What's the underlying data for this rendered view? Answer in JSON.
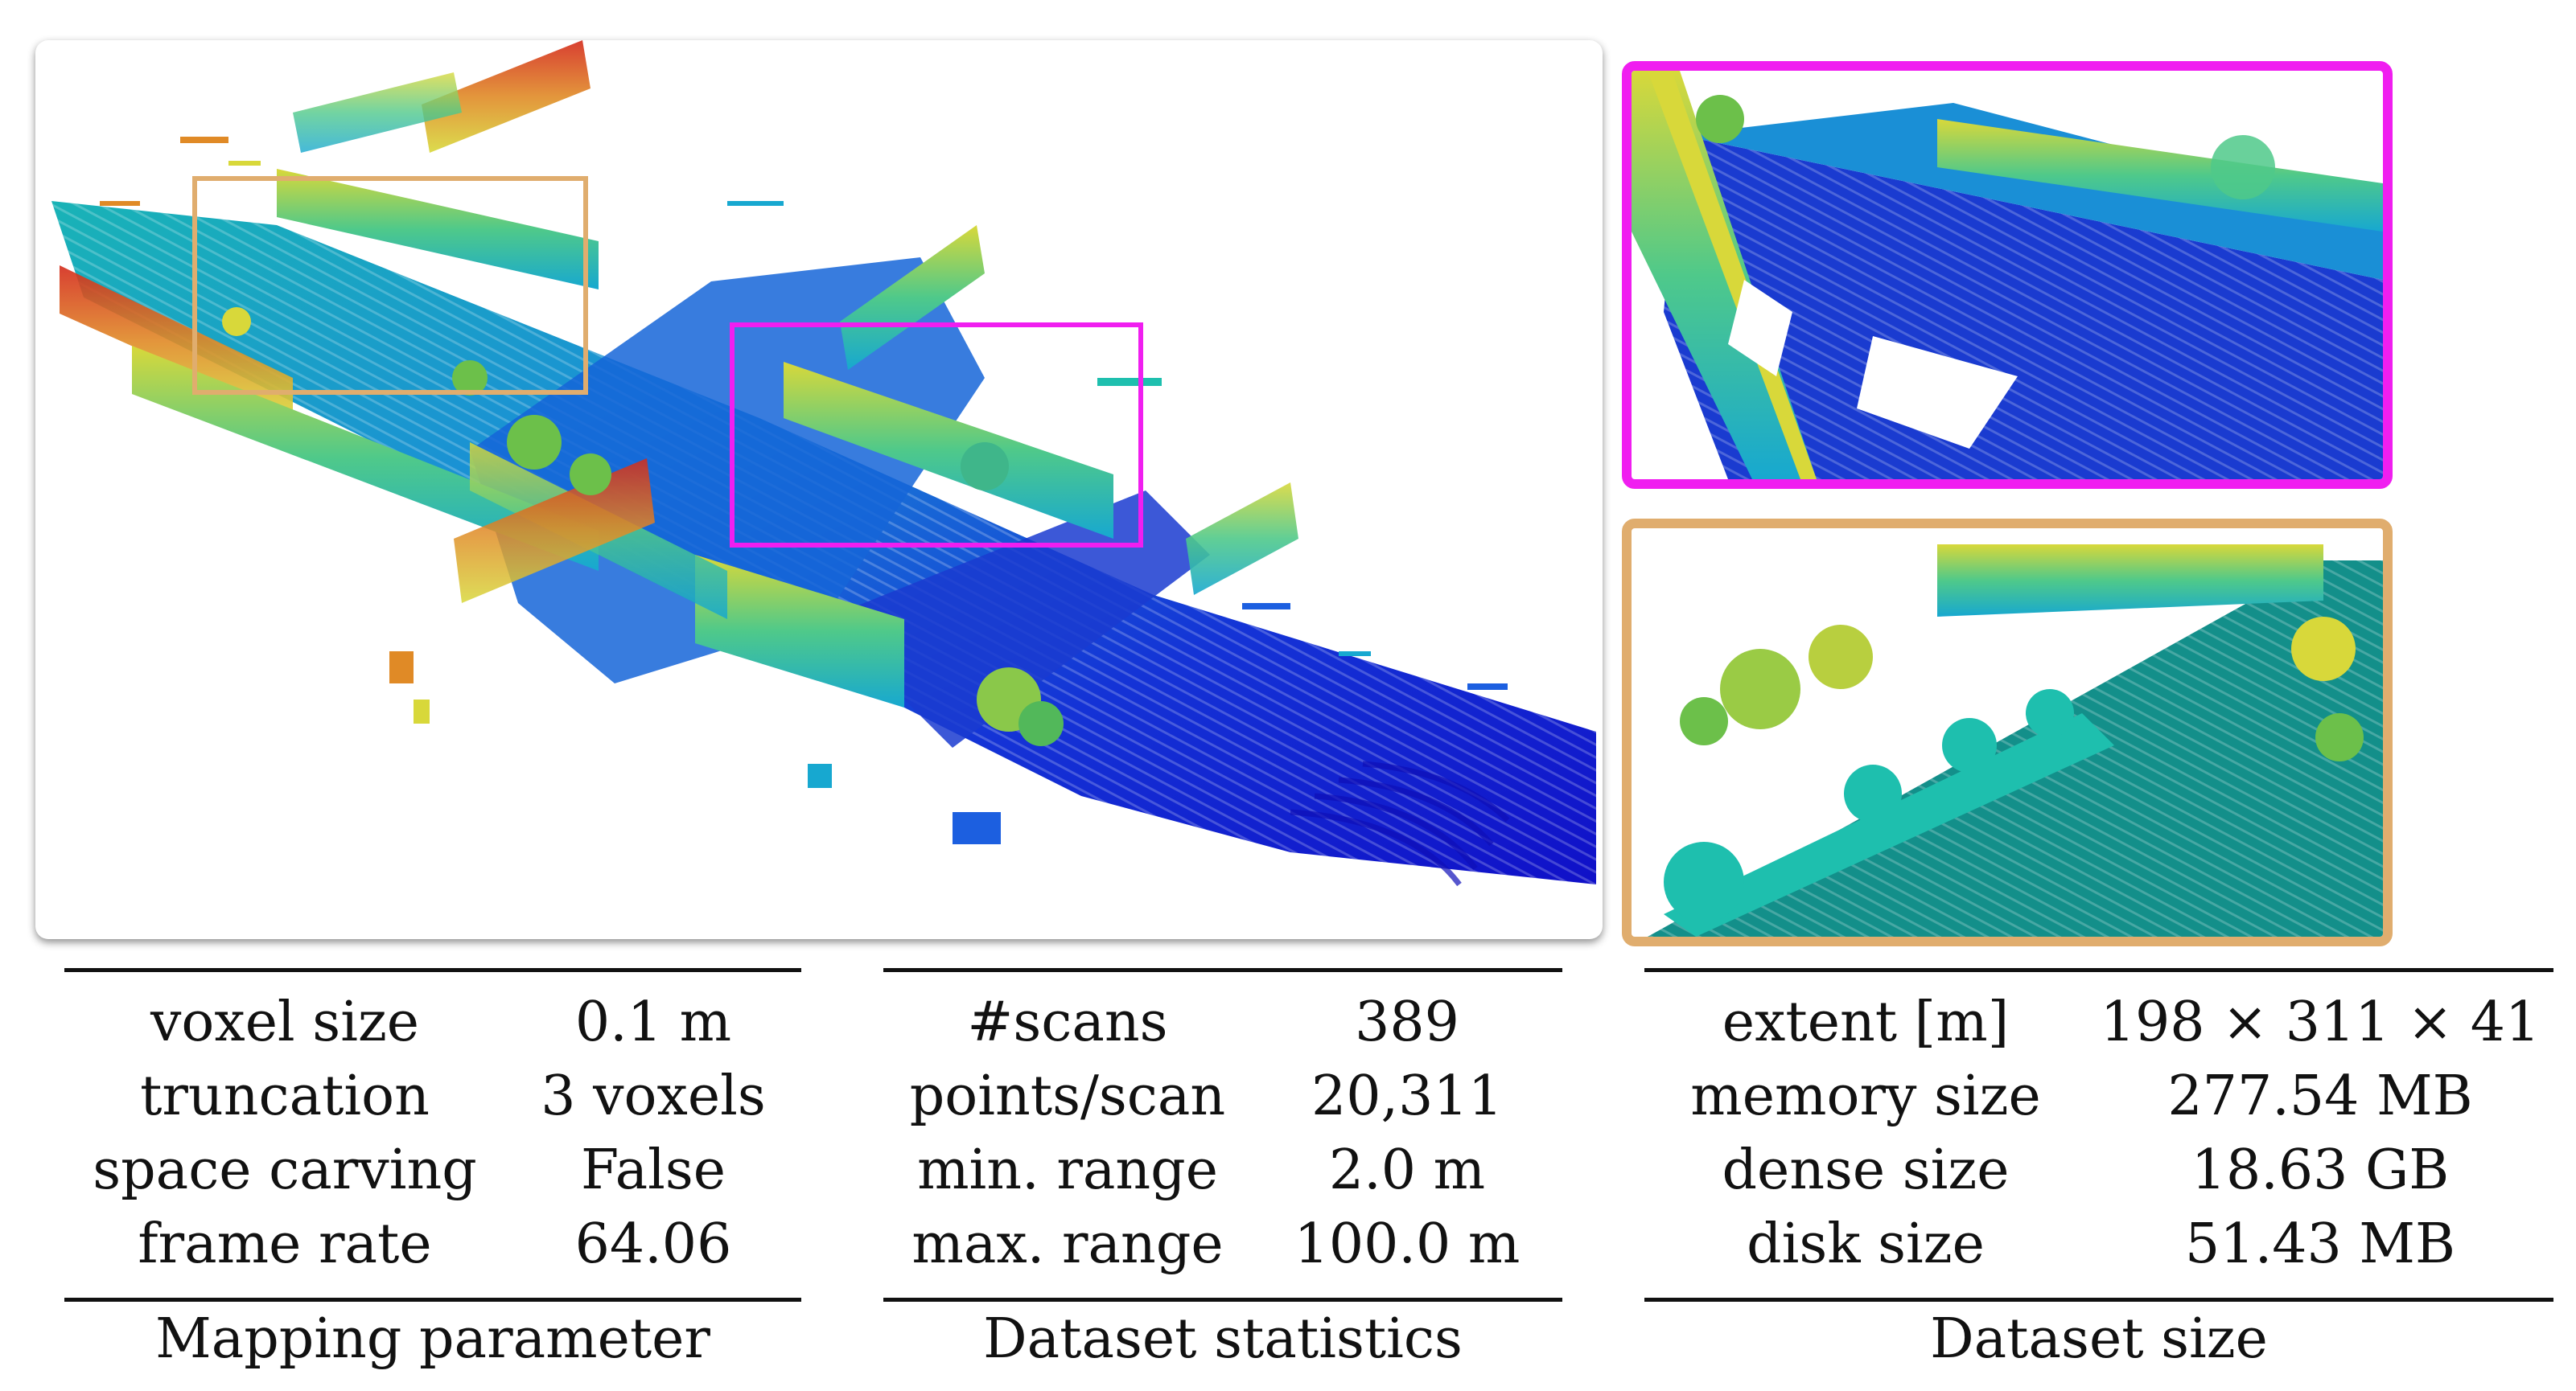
{
  "figure": {
    "highlight_colors": {
      "magenta": "#f01ef0",
      "tan": "#e0ad6e"
    },
    "colormap": [
      "#1010d8",
      "#1c5fe0",
      "#17a8d0",
      "#1ebfae",
      "#62d070",
      "#d8d83a",
      "#e08a26",
      "#d42a1a"
    ]
  },
  "tables": {
    "mapping": {
      "caption": "Mapping parameter",
      "rows": [
        {
          "label": "voxel size",
          "value": "0.1 m"
        },
        {
          "label": "truncation",
          "value": "3 voxels"
        },
        {
          "label": "space carving",
          "value": "False"
        },
        {
          "label": "frame rate",
          "value": "64.06"
        }
      ]
    },
    "dataset": {
      "caption": "Dataset statistics",
      "rows": [
        {
          "label": "#scans",
          "value": "389"
        },
        {
          "label": "points/scan",
          "value": "20,311"
        },
        {
          "label": "min. range",
          "value": "2.0 m"
        },
        {
          "label": "max. range",
          "value": "100.0 m"
        }
      ]
    },
    "size": {
      "caption": "Dataset size",
      "rows": [
        {
          "label": "extent [m]",
          "value": "198 × 311 × 41"
        },
        {
          "label": "memory size",
          "value": "277.54 MB"
        },
        {
          "label": "dense size",
          "value": "18.63 GB"
        },
        {
          "label": "disk size",
          "value": "51.43 MB"
        }
      ]
    }
  }
}
